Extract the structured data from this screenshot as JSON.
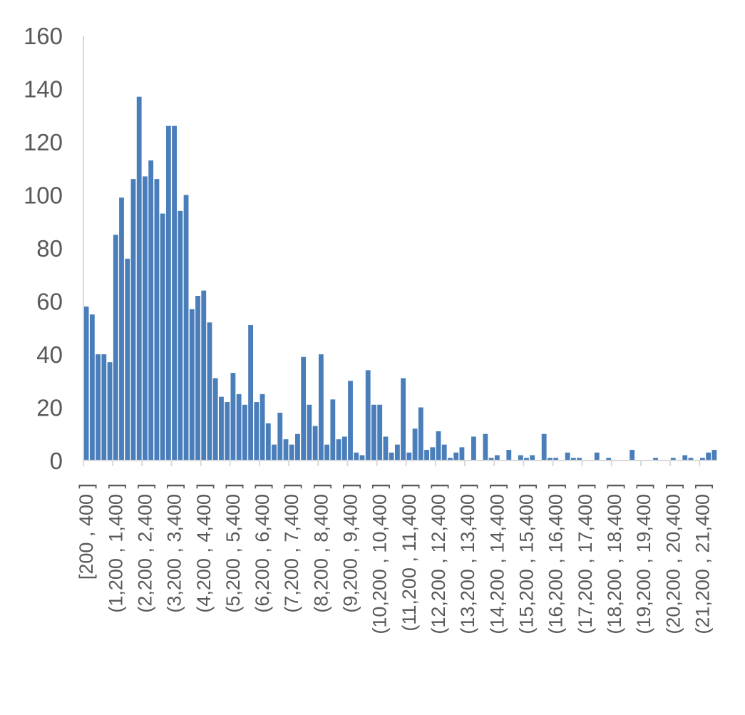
{
  "chart_data": {
    "type": "bar",
    "title": "",
    "xlabel": "",
    "ylabel": "",
    "ylim": [
      0,
      160
    ],
    "yticks": [
      0,
      20,
      40,
      60,
      80,
      100,
      120,
      140,
      160
    ],
    "grid": false,
    "legend": "none",
    "bar_color": "#4a7ebb",
    "axis_color": "#d9d9d9",
    "tick_label_color": "#595959",
    "x_tick_labels": [
      "[200 , 400 ]",
      "(1,200 , 1,400 ]",
      "(2,200 , 2,400 ]",
      "(3,200 , 3,400 ]",
      "(4,200 , 4,400 ]",
      "(5,200 , 5,400 ]",
      "(6,200 , 6,400 ]",
      "(7,200 , 7,400 ]",
      "(8,200 , 8,400 ]",
      "(9,200 , 9,400 ]",
      "(10,200 , 10,400 ]",
      "(11,200 , 11,400 ]",
      "(12,200 , 12,400 ]",
      "(13,200 , 13,400 ]",
      "(14,200 , 14,400 ]",
      "(15,200 , 15,400 ]",
      "(16,200 , 16,400 ]",
      "(17,200 , 17,400 ]",
      "(18,200 , 18,400 ]",
      "(19,200 , 19,400 ]",
      "(20,200 , 20,400 ]",
      "(21,200 , 21,400 ]"
    ],
    "label_every": 5,
    "values": [
      58,
      55,
      40,
      40,
      37,
      85,
      99,
      76,
      106,
      137,
      107,
      113,
      106,
      93,
      126,
      126,
      94,
      100,
      57,
      62,
      64,
      52,
      31,
      24,
      22,
      33,
      25,
      21,
      51,
      22,
      25,
      14,
      6,
      18,
      8,
      6,
      10,
      39,
      21,
      13,
      40,
      6,
      23,
      8,
      9,
      30,
      3,
      2,
      34,
      21,
      21,
      9,
      3,
      6,
      31,
      3,
      12,
      20,
      4,
      5,
      11,
      6,
      1,
      3,
      5,
      0,
      9,
      0,
      10,
      1,
      2,
      0,
      4,
      0,
      2,
      1,
      2,
      0,
      10,
      1,
      1,
      0,
      3,
      1,
      1,
      0,
      0,
      3,
      0,
      1,
      0,
      0,
      0,
      4,
      0,
      0,
      0,
      1,
      0,
      0,
      1,
      0,
      2,
      1,
      0,
      1,
      3,
      4
    ]
  }
}
